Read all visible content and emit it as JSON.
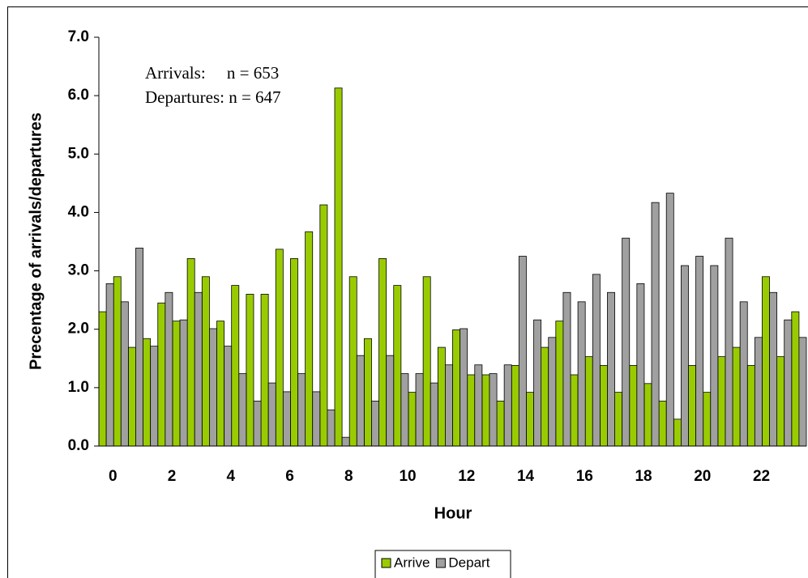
{
  "chart_data": {
    "type": "bar",
    "xlabel": "Hour",
    "ylabel": "Precentage of arrivals/departures",
    "annotations": [
      "Arrivals:     n = 653",
      "Departures: n = 647"
    ],
    "categories": [
      "0",
      null,
      null,
      null,
      "2",
      null,
      null,
      null,
      "4",
      null,
      null,
      null,
      "6",
      null,
      null,
      null,
      "8",
      null,
      null,
      null,
      "10",
      null,
      null,
      null,
      "12",
      null,
      null,
      null,
      "14",
      null,
      null,
      null,
      "16",
      null,
      null,
      null,
      "18",
      null,
      null,
      null,
      "20",
      null,
      null,
      null,
      "22",
      null,
      null,
      null
    ],
    "series": [
      {
        "name": "Arrive",
        "color": "#99cc00",
        "values": [
          2.3,
          2.9,
          1.69,
          1.84,
          2.45,
          2.14,
          3.21,
          2.9,
          2.14,
          2.75,
          2.6,
          2.6,
          3.37,
          3.21,
          3.67,
          4.13,
          6.13,
          2.9,
          1.84,
          3.21,
          2.75,
          0.92,
          2.9,
          1.69,
          1.99,
          1.22,
          1.22,
          0.77,
          1.38,
          0.92,
          1.69,
          2.14,
          1.22,
          1.53,
          1.38,
          0.92,
          1.38,
          1.07,
          0.77,
          0.46,
          1.38,
          0.92,
          1.53,
          1.69,
          1.38,
          2.9,
          1.53,
          2.3
        ]
      },
      {
        "name": "Depart",
        "color": "#a0a0a0",
        "values": [
          2.78,
          2.47,
          3.39,
          1.71,
          2.63,
          2.16,
          2.63,
          2.01,
          1.71,
          1.24,
          0.77,
          1.08,
          0.93,
          1.24,
          0.93,
          0.62,
          0.15,
          1.55,
          0.77,
          1.55,
          1.24,
          1.24,
          1.08,
          1.39,
          2.01,
          1.39,
          1.24,
          1.39,
          3.25,
          2.16,
          1.86,
          2.63,
          2.47,
          2.94,
          2.63,
          3.56,
          2.78,
          4.17,
          4.33,
          3.09,
          3.25,
          3.09,
          3.56,
          2.47,
          1.86,
          2.63,
          2.16,
          1.86
        ]
      }
    ],
    "ylim": [
      0,
      7
    ],
    "yticks": [
      {
        "value": 0,
        "label": "0.0"
      },
      {
        "value": 1,
        "label": "1.0"
      },
      {
        "value": 2,
        "label": "2.0"
      },
      {
        "value": 3,
        "label": "3.0"
      },
      {
        "value": 4,
        "label": "4.0"
      },
      {
        "value": 5,
        "label": "5.0"
      },
      {
        "value": 6,
        "label": "6.0"
      },
      {
        "value": 7,
        "label": "7.0"
      }
    ],
    "legend": "bottom"
  }
}
